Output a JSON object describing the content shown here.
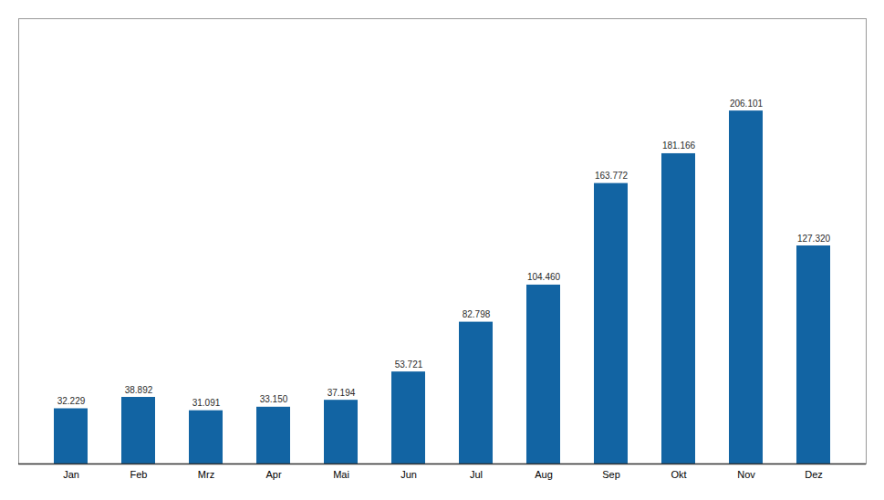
{
  "chart_data": {
    "type": "bar",
    "categories": [
      "Jan",
      "Feb",
      "Mrz",
      "Apr",
      "Mai",
      "Jun",
      "Jul",
      "Aug",
      "Sep",
      "Okt",
      "Nov",
      "Dez"
    ],
    "values": [
      32229,
      38892,
      31091,
      33150,
      37194,
      53721,
      82798,
      104460,
      163772,
      181166,
      206101,
      127320
    ],
    "value_labels": [
      "32.229",
      "38.892",
      "31.091",
      "33.150",
      "37.194",
      "53.721",
      "82.798",
      "104.460",
      "163.772",
      "181.166",
      "206.101",
      "127.320"
    ],
    "data_labels": true,
    "color": "#1264A3",
    "ylim": [
      0,
      260000
    ],
    "tick_labels": "x",
    "grid": false
  }
}
